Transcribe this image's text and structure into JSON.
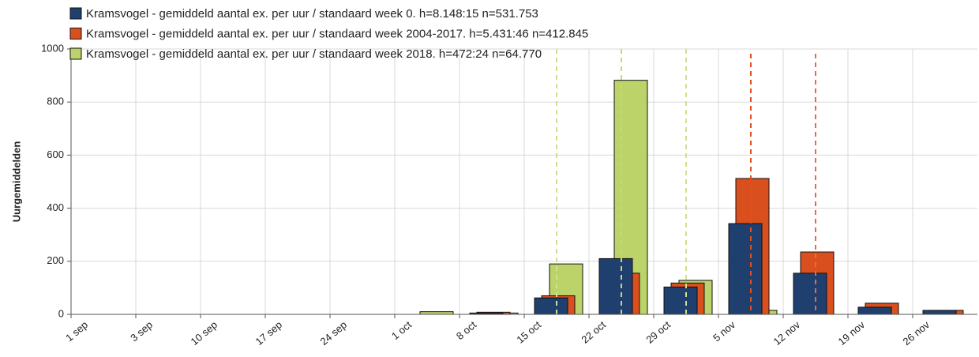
{
  "chart_data": {
    "type": "bar",
    "y_label": "Uurgemiddelden",
    "categories": [
      "1 sep",
      "3 sep",
      "10 sep",
      "17 sep",
      "24 sep",
      "1 oct",
      "8 oct",
      "15 oct",
      "22 oct",
      "29 oct",
      "5 nov",
      "12 nov",
      "19 nov",
      "26 nov"
    ],
    "series": [
      {
        "name": "Kramsvogel - gemiddeld aantal ex. per uur / standaard week 0. h=8.148:15 n=531.753",
        "color": "#1f3f6e",
        "values": [
          0,
          0,
          0,
          0,
          0,
          0,
          5,
          62,
          210,
          103,
          342,
          155,
          27,
          15
        ]
      },
      {
        "name": "Kramsvogel - gemiddeld aantal ex. per uur / standaard week 2004-2017. h=5.431:46 n=412.845",
        "color": "#d9501e",
        "values": [
          0,
          0,
          0,
          0,
          0,
          0,
          8,
          70,
          155,
          118,
          512,
          235,
          42,
          15
        ]
      },
      {
        "name": "Kramsvogel - gemiddeld aantal ex. per uur / standaard week 2018. h=472:24 n=64.770",
        "color": "#bcd36a",
        "values": [
          0,
          0,
          0,
          0,
          0,
          10,
          5,
          190,
          882,
          128,
          15,
          0,
          0,
          0
        ]
      }
    ],
    "ylim": [
      0,
      1000
    ],
    "yticks": [
      0,
      200,
      400,
      600,
      800,
      1000
    ],
    "grid": true
  }
}
